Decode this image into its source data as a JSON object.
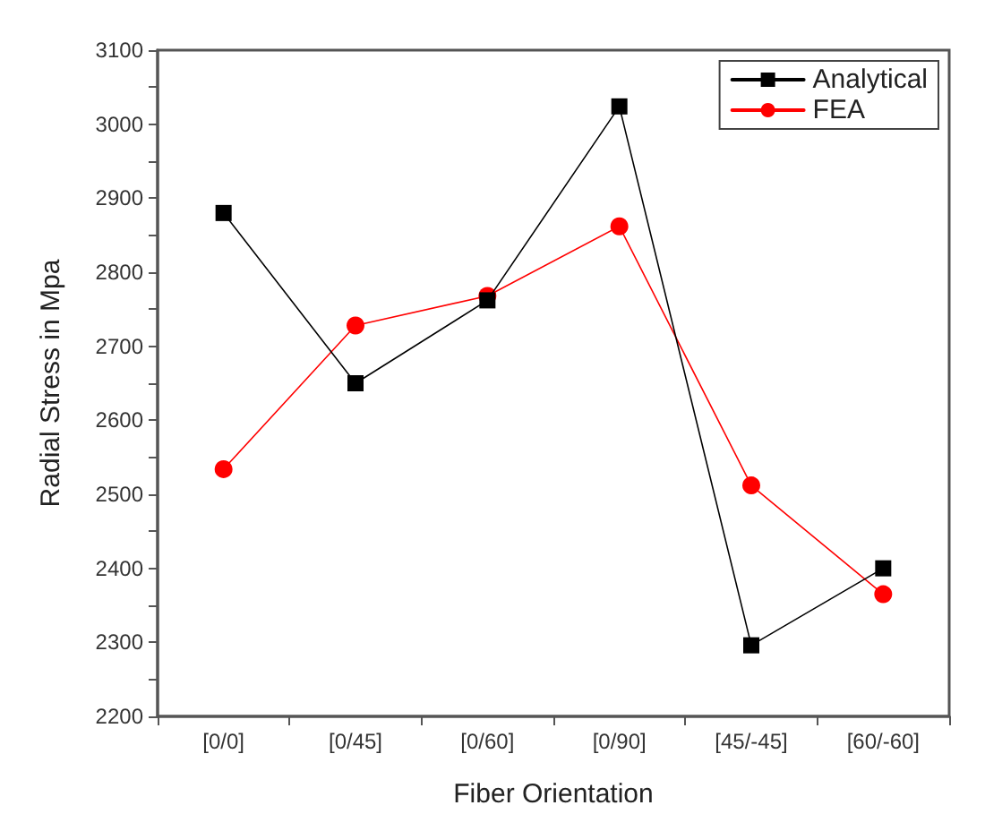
{
  "chart_data": {
    "type": "line",
    "xlabel": "Fiber Orientation",
    "ylabel": "Radial Stress in Mpa",
    "categories": [
      "[0/0]",
      "[0/45]",
      "[0/60]",
      "[0/90]",
      "[45/-45]",
      "[60/-60]"
    ],
    "series": [
      {
        "name": "Analytical",
        "color": "#000000",
        "marker": "square",
        "values": [
          2880,
          2650,
          2762,
          3024,
          2296,
          2400
        ]
      },
      {
        "name": "FEA",
        "color": "#ff0000",
        "marker": "circle",
        "values": [
          2534,
          2728,
          2768,
          2862,
          2512,
          2365
        ]
      }
    ],
    "ylim": [
      2200,
      3100
    ],
    "yticks": [
      2200,
      {
        "value": 2250,
        "label": null
      },
      2300,
      {
        "value": 2350,
        "label": null
      },
      2400,
      {
        "value": 2450,
        "label": null
      },
      2500,
      {
        "value": 2550,
        "label": null
      },
      2600,
      {
        "value": 2650,
        "label": null
      },
      2700,
      {
        "value": 2750,
        "label": null
      },
      2800,
      {
        "value": 2850,
        "label": null
      },
      2900,
      {
        "value": 2950,
        "label": null
      },
      3000,
      {
        "value": 3050,
        "label": null
      },
      3100
    ],
    "grid": false,
    "legend": "top right",
    "line_style": "solid"
  }
}
